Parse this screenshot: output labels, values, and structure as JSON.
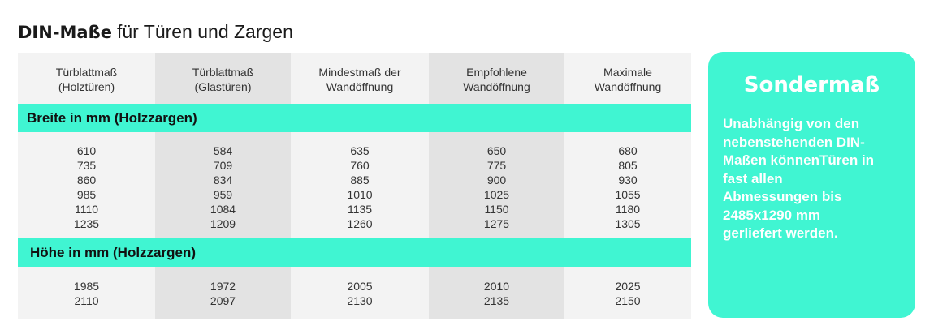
{
  "title": {
    "bold": "DIN-Maße",
    "rest": "für Türen und Zargen"
  },
  "columns": [
    {
      "line1": "Türblattmaß",
      "line2": "(Holztüren)"
    },
    {
      "line1": "Türblattmaß",
      "line2": "(Glastüren)"
    },
    {
      "line1": "Mindestmaß der",
      "line2": "Wandöffnung"
    },
    {
      "line1": "Empfohlene",
      "line2": "Wandöffnung"
    },
    {
      "line1": "Maximale",
      "line2": "Wandöffnung"
    }
  ],
  "sections": [
    {
      "label": "Breite in mm (Holzzargen)",
      "columns": [
        [
          "610",
          "735",
          "860",
          "985",
          "1110",
          "1235"
        ],
        [
          "584",
          "709",
          "834",
          "959",
          "1084",
          "1209"
        ],
        [
          "635",
          "760",
          "885",
          "1010",
          "1135",
          "1260"
        ],
        [
          "650",
          "775",
          "900",
          "1025",
          "1150",
          "1275"
        ],
        [
          "680",
          "805",
          "930",
          "1055",
          "1180",
          "1305"
        ]
      ]
    },
    {
      "label": "Höhe in mm (Holzzargen)",
      "columns": [
        [
          "1985",
          "2110"
        ],
        [
          "1972",
          "2097"
        ],
        [
          "2005",
          "2130"
        ],
        [
          "2010",
          "2135"
        ],
        [
          "2025",
          "2150"
        ]
      ]
    }
  ],
  "panel": {
    "title": "Sondermaß",
    "lines": [
      "Unabhängig von den",
      "nebenstehenden DIN-",
      "Maßen könnenTüren in",
      "fast allen",
      "Abmessungen bis",
      "2485x1290 mm",
      "gerliefert werden."
    ]
  },
  "colors": {
    "accent": "#40f5d2",
    "cell_light": "#f3f3f3",
    "cell_dark": "#e3e3e3",
    "panel_text": "#ffffff"
  }
}
